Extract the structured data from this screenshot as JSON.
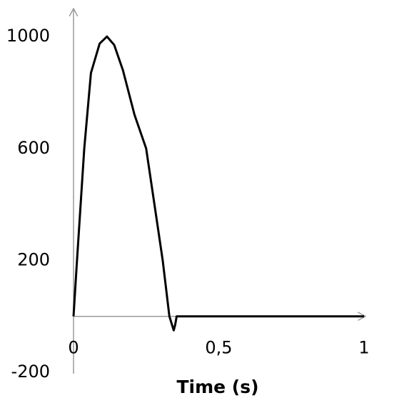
{
  "chart_data": {
    "type": "line",
    "x_label": "Time (s)",
    "x": [
      0,
      0.012,
      0.037,
      0.06,
      0.09,
      0.115,
      0.14,
      0.17,
      0.21,
      0.25,
      0.28,
      0.307,
      0.33,
      0.345,
      0.35,
      0.355,
      1
    ],
    "values": [
      0,
      200,
      600,
      870,
      975,
      1000,
      970,
      880,
      720,
      600,
      390,
      200,
      0,
      -50,
      -30,
      0,
      0
    ],
    "color": "#000000",
    "xlim": [
      0,
      1
    ],
    "xticks": [
      0,
      {
        "value": 0.5,
        "label": "0,5"
      },
      1
    ],
    "ylim": [
      -200,
      1100
    ],
    "yticks": [
      -200,
      200,
      600,
      1000
    ],
    "grid": false
  }
}
